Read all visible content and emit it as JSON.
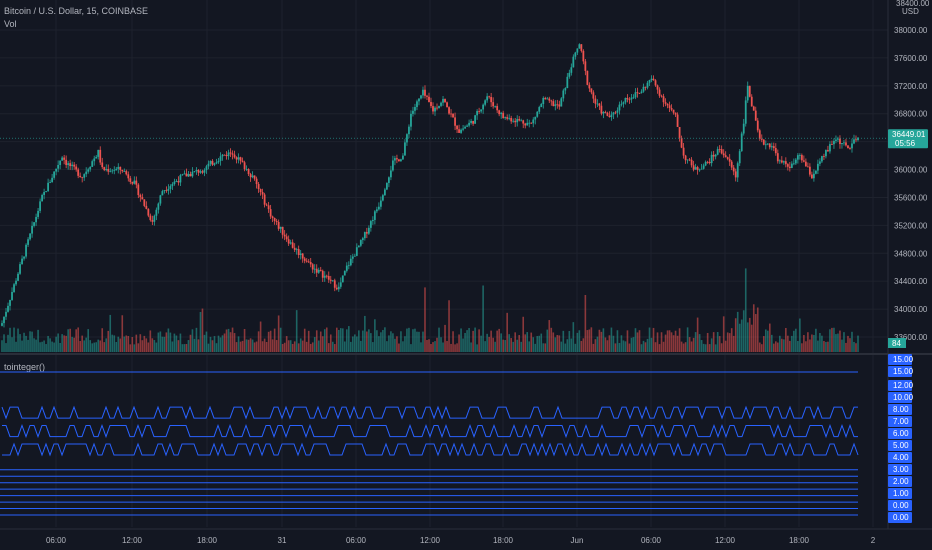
{
  "header": {
    "symbol": "Bitcoin / U.S. Dollar, 15, COINBASE",
    "volume_label": "Vol"
  },
  "chart_data": [
    {
      "type": "candlestick",
      "pane": "price",
      "currency": "USD",
      "ylim": [
        33200,
        38400
      ],
      "y_ticks": [
        33600,
        34000,
        34400,
        34800,
        35200,
        35600,
        36000,
        36400,
        36800,
        37200,
        37600,
        38000
      ],
      "y_tick_labels": [
        "33600.00",
        "34000.00",
        "34400.00",
        "34800.00",
        "35200.00",
        "35600.00",
        "36000.00",
        "36400.00",
        "36800.00",
        "37200.00",
        "37600.00",
        "38000.00"
      ],
      "top_partial_label": "38400.00",
      "last_price": 36449.01,
      "last_price_label": "36449.01",
      "countdown_label": "05:56",
      "price_path": [
        [
          0,
          33800
        ],
        [
          10,
          34700
        ],
        [
          20,
          35600
        ],
        [
          30,
          36200
        ],
        [
          32,
          36100
        ],
        [
          40,
          35900
        ],
        [
          48,
          36250
        ],
        [
          50,
          36000
        ],
        [
          60,
          36000
        ],
        [
          66,
          35800
        ],
        [
          75,
          35250
        ],
        [
          80,
          35700
        ],
        [
          90,
          35900
        ],
        [
          100,
          36000
        ],
        [
          110,
          36200
        ],
        [
          115,
          36250
        ],
        [
          125,
          35900
        ],
        [
          135,
          35300
        ],
        [
          145,
          34900
        ],
        [
          155,
          34600
        ],
        [
          162,
          34450
        ],
        [
          168,
          34300
        ],
        [
          172,
          34600
        ],
        [
          180,
          35000
        ],
        [
          188,
          35500
        ],
        [
          195,
          36100
        ],
        [
          200,
          36200
        ],
        [
          204,
          36800
        ],
        [
          210,
          37100
        ],
        [
          215,
          36850
        ],
        [
          220,
          37000
        ],
        [
          228,
          36550
        ],
        [
          235,
          36700
        ],
        [
          242,
          37050
        ],
        [
          250,
          36750
        ],
        [
          258,
          36700
        ],
        [
          264,
          36650
        ],
        [
          270,
          37000
        ],
        [
          278,
          36900
        ],
        [
          284,
          37500
        ],
        [
          288,
          37800
        ],
        [
          292,
          37250
        ],
        [
          296,
          36950
        ],
        [
          300,
          36800
        ],
        [
          304,
          36750
        ],
        [
          310,
          37000
        ],
        [
          318,
          37100
        ],
        [
          324,
          37300
        ],
        [
          330,
          37000
        ],
        [
          336,
          36750
        ],
        [
          340,
          36200
        ],
        [
          346,
          36000
        ],
        [
          352,
          36100
        ],
        [
          358,
          36300
        ],
        [
          362,
          36150
        ],
        [
          366,
          35900
        ],
        [
          370,
          36700
        ],
        [
          372,
          37200
        ],
        [
          378,
          36400
        ],
        [
          384,
          36350
        ],
        [
          388,
          36100
        ],
        [
          394,
          36050
        ],
        [
          398,
          36200
        ],
        [
          404,
          35900
        ],
        [
          410,
          36200
        ],
        [
          416,
          36450
        ],
        [
          422,
          36300
        ],
        [
          427,
          36449
        ]
      ],
      "volume_ylim": [
        0,
        100
      ],
      "volume_label": "84"
    },
    {
      "type": "line",
      "pane": "indicator",
      "title": "tointeger()",
      "ylim": [
        -0.8,
        15.8
      ],
      "y_tick_labels": [
        "15.00",
        "15.00",
        "12.00",
        "10.00",
        "8.00",
        "7.00",
        "6.00",
        "5.00",
        "4.00",
        "3.00",
        "2.00",
        "1.00",
        "0.00",
        "0.00"
      ],
      "constant_series": [
        15,
        4.4,
        3.7,
        3.0,
        2.3,
        1.6,
        0.9,
        0.2,
        -0.5
      ],
      "wave_series": [
        {
          "low": 10,
          "high": 11.2
        },
        {
          "low": 8,
          "high": 9.2
        },
        {
          "low": 6,
          "high": 7.2
        }
      ]
    }
  ],
  "x_axis": {
    "labels": [
      {
        "text": "06:00",
        "x": 56
      },
      {
        "text": "12:00",
        "x": 132
      },
      {
        "text": "18:00",
        "x": 207
      },
      {
        "text": "31",
        "x": 282
      },
      {
        "text": "06:00",
        "x": 356
      },
      {
        "text": "12:00",
        "x": 430
      },
      {
        "text": "18:00",
        "x": 503
      },
      {
        "text": "Jun",
        "x": 577
      },
      {
        "text": "06:00",
        "x": 651
      },
      {
        "text": "12:00",
        "x": 725
      },
      {
        "text": "18:00",
        "x": 799
      },
      {
        "text": "2",
        "x": 873
      }
    ]
  },
  "colors": {
    "background": "#131722",
    "grid": "#1e222d",
    "up": "#26a69a",
    "down": "#ef5350",
    "indicator_line": "#2962ff",
    "axis_text": "#b2b5be",
    "price_tag": "#26a69a",
    "indicator_tag": "#2962ff"
  }
}
